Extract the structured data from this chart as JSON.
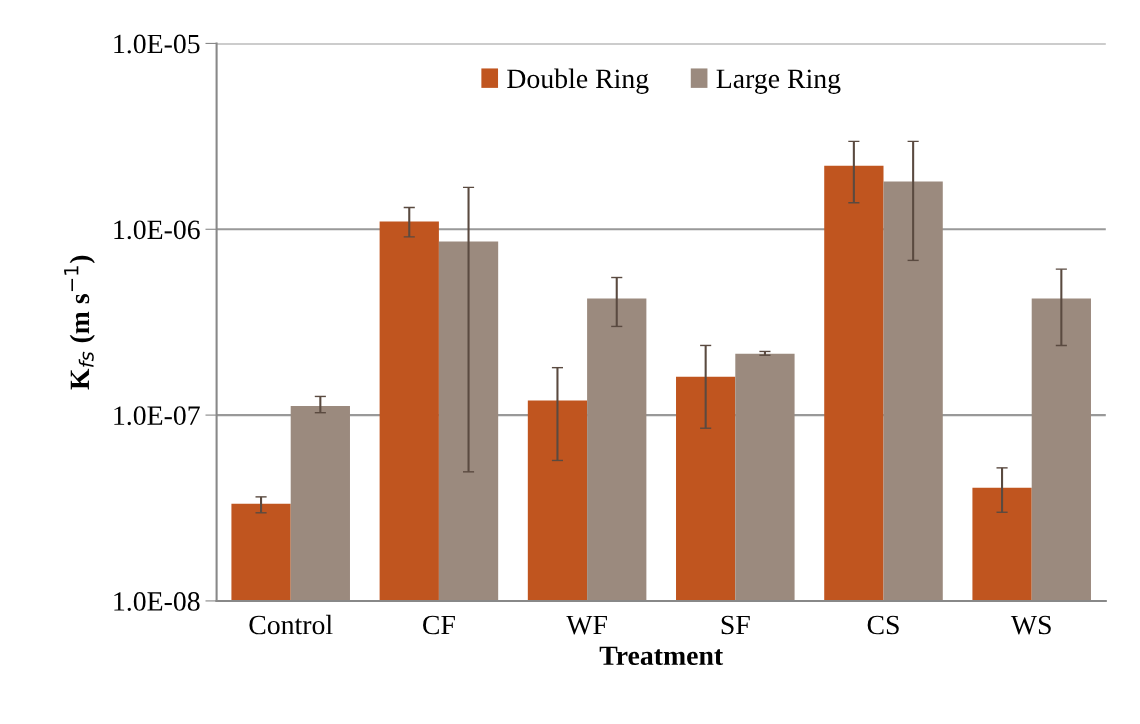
{
  "chart_data": {
    "type": "bar",
    "xlabel": "Treatment",
    "ylabel": "K$_{fs}$ (m s$^{−1}$)",
    "categories": [
      "Control",
      "CF",
      "WF",
      "SF",
      "CS",
      "WS"
    ],
    "series": [
      {
        "name": "Double Ring",
        "color": "#c0551f",
        "values": [
          3.33e-08,
          1.1e-06,
          1.2e-07,
          1.61e-07,
          2.2e-06,
          4.06e-08
        ],
        "errors": [
          [
            2.98e-08,
            3.63e-08
          ],
          [
            9.1e-07,
            1.31e-06
          ],
          [
            5.7e-08,
            1.8e-07
          ],
          [
            8.5e-08,
            2.37e-07
          ],
          [
            1.39e-06,
            2.97e-06
          ],
          [
            3e-08,
            5.2e-08
          ]
        ]
      },
      {
        "name": "Large Ring",
        "color": "#9b8a7e",
        "values": [
          1.12e-07,
          8.6e-07,
          4.24e-07,
          2.14e-07,
          1.81e-06,
          4.24e-07
        ],
        "errors": [
          [
            1.03e-07,
            1.26e-07
          ],
          [
            4.95e-08,
            1.68e-06
          ],
          [
            3e-07,
            5.5e-07
          ],
          [
            2.1e-07,
            2.2e-07
          ],
          [
            6.8e-07,
            2.97e-06
          ],
          [
            2.37e-07,
            6.1e-07
          ]
        ]
      }
    ],
    "log": "y",
    "ylim": [
      1e-08,
      1e-05
    ],
    "yticks": [
      {
        "value": 1e-08,
        "label": "1.0E-08"
      },
      {
        "value": 1e-07,
        "label": "1.0E-07"
      },
      {
        "value": 1e-06,
        "label": "1.0E-06"
      },
      {
        "value": 1e-05,
        "label": "1.0E-05"
      }
    ],
    "grid": "y",
    "legend": "top"
  }
}
